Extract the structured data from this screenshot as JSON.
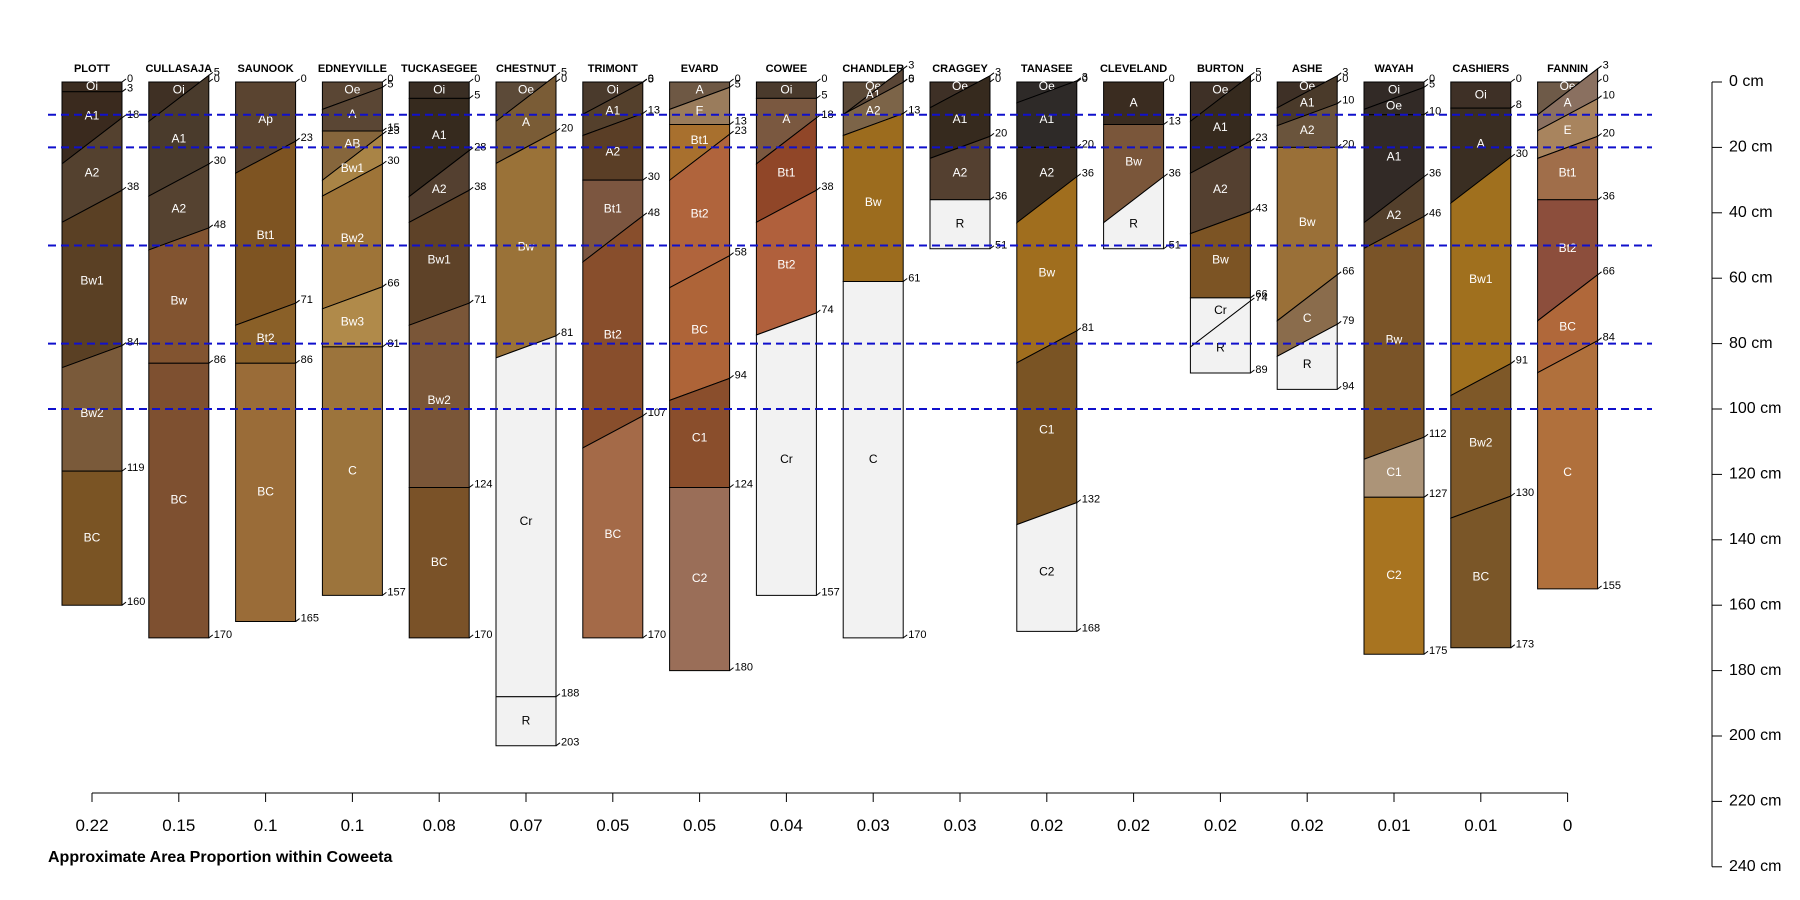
{
  "chart_data": {
    "type": "soil_profile_sketch",
    "xlabel": "Approximate Area Proportion within Coweeta",
    "depth_axis": {
      "ticks": [
        0,
        20,
        40,
        60,
        80,
        100,
        120,
        140,
        160,
        180,
        200,
        220,
        240
      ],
      "unit": "cm",
      "range": [
        0,
        240
      ]
    },
    "reference_lines": [
      10,
      20,
      50,
      80,
      100
    ],
    "reference_line_color": "#1010cc",
    "profiles": [
      {
        "name": "PLOTT",
        "proportion": "0.22",
        "horizons": [
          {
            "name": "Oi",
            "top": 0,
            "bottom": 3,
            "color": "#3b2c20"
          },
          {
            "name": "A1",
            "top": 3,
            "bottom": 18,
            "color": "#3a2a1e"
          },
          {
            "name": "A2",
            "top": 18,
            "bottom": 38,
            "color": "#54412f"
          },
          {
            "name": "Bw1",
            "top": 38,
            "bottom": 84,
            "color": "#5a4024"
          },
          {
            "name": "Bw2",
            "top": 84,
            "bottom": 119,
            "color": "#7a5a3a"
          },
          {
            "name": "BC",
            "top": 119,
            "bottom": 160,
            "color": "#7a5424"
          }
        ]
      },
      {
        "name": "CULLASAJA",
        "proportion": "0.15",
        "horizons": [
          {
            "name": "Oi",
            "top": 0,
            "bottom": 5,
            "color": "#3f3024"
          },
          {
            "name": "A1",
            "top": 5,
            "bottom": 30,
            "color": "#4a3b2c"
          },
          {
            "name": "A2",
            "top": 30,
            "bottom": 48,
            "color": "#554230"
          },
          {
            "name": "Bw",
            "top": 48,
            "bottom": 86,
            "color": "#825430"
          },
          {
            "name": "BC",
            "top": 86,
            "bottom": 170,
            "color": "#7e5030"
          }
        ]
      },
      {
        "name": "SAUNOOK",
        "proportion": "0.1",
        "horizons": [
          {
            "name": "Ap",
            "top": 0,
            "bottom": 23,
            "color": "#5a4430"
          },
          {
            "name": "Bt1",
            "top": 23,
            "bottom": 71,
            "color": "#7e5422"
          },
          {
            "name": "Bt2",
            "top": 71,
            "bottom": 86,
            "color": "#8a6028"
          },
          {
            "name": "BC",
            "top": 86,
            "bottom": 165,
            "color": "#9a6c38"
          }
        ]
      },
      {
        "name": "EDNEYVILLE",
        "proportion": "0.1",
        "horizons": [
          {
            "name": "Oe",
            "top": 0,
            "bottom": 5,
            "color": "#5a4634"
          },
          {
            "name": "A",
            "top": 5,
            "bottom": 15,
            "color": "#5a4634"
          },
          {
            "name": "AB",
            "top": 15,
            "bottom": 23,
            "color": "#86663c"
          },
          {
            "name": "Bw1",
            "top": 23,
            "bottom": 30,
            "color": "#a98446"
          },
          {
            "name": "Bw2",
            "top": 30,
            "bottom": 66,
            "color": "#9e7438"
          },
          {
            "name": "Bw3",
            "top": 66,
            "bottom": 81,
            "color": "#b08a4a"
          },
          {
            "name": "C",
            "top": 81,
            "bottom": 157,
            "color": "#9c743c"
          }
        ]
      },
      {
        "name": "TUCKASEGEE",
        "proportion": "0.08",
        "horizons": [
          {
            "name": "Oi",
            "top": 0,
            "bottom": 5,
            "color": "#3a2e24"
          },
          {
            "name": "A1",
            "top": 5,
            "bottom": 28,
            "color": "#362a1e"
          },
          {
            "name": "A2",
            "top": 28,
            "bottom": 38,
            "color": "#544030"
          },
          {
            "name": "Bw1",
            "top": 38,
            "bottom": 71,
            "color": "#5e4228"
          },
          {
            "name": "Bw2",
            "top": 71,
            "bottom": 124,
            "color": "#7a5638"
          },
          {
            "name": "BC",
            "top": 124,
            "bottom": 170,
            "color": "#7a5228"
          }
        ]
      },
      {
        "name": "CHESTNUT",
        "proportion": "0.07",
        "horizons": [
          {
            "name": "Oe",
            "top": 0,
            "bottom": 5,
            "color": "#5c4a38"
          },
          {
            "name": "A",
            "top": 5,
            "bottom": 20,
            "color": "#7a5c36"
          },
          {
            "name": "Bw",
            "top": 20,
            "bottom": 81,
            "color": "#9a7238"
          },
          {
            "name": "Cr",
            "top": 81,
            "bottom": 188,
            "color": "#f2f2f2"
          },
          {
            "name": "R",
            "top": 188,
            "bottom": 203,
            "color": "#f2f2f2"
          }
        ]
      },
      {
        "name": "TRIMONT",
        "proportion": "0.05",
        "horizons": [
          {
            "name": "Oi",
            "top": 0,
            "bottom": 5,
            "color": "#4a3a2c"
          },
          {
            "name": "A1",
            "top": 5,
            "bottom": 13,
            "color": "#54402c"
          },
          {
            "name": "A2",
            "top": 13,
            "bottom": 30,
            "color": "#5a3e26"
          },
          {
            "name": "Bt1",
            "top": 30,
            "bottom": 48,
            "color": "#7c5640"
          },
          {
            "name": "Bt2",
            "top": 48,
            "bottom": 107,
            "color": "#884e2c"
          },
          {
            "name": "BC",
            "top": 107,
            "bottom": 170,
            "color": "#a46a48"
          }
        ]
      },
      {
        "name": "EVARD",
        "proportion": "0.05",
        "horizons": [
          {
            "name": "A",
            "top": 0,
            "bottom": 5,
            "color": "#6e5844"
          },
          {
            "name": "E",
            "top": 5,
            "bottom": 13,
            "color": "#9a7c5c"
          },
          {
            "name": "Bt1",
            "top": 13,
            "bottom": 23,
            "color": "#a8702e"
          },
          {
            "name": "Bt2",
            "top": 23,
            "bottom": 58,
            "color": "#b0643c"
          },
          {
            "name": "BC",
            "top": 58,
            "bottom": 94,
            "color": "#ae6438"
          },
          {
            "name": "C1",
            "top": 94,
            "bottom": 124,
            "color": "#8a4e2c"
          },
          {
            "name": "C2",
            "top": 124,
            "bottom": 180,
            "color": "#9a6e58"
          }
        ]
      },
      {
        "name": "COWEE",
        "proportion": "0.04",
        "horizons": [
          {
            "name": "Oi",
            "top": 0,
            "bottom": 5,
            "color": "#4a3a2c"
          },
          {
            "name": "A",
            "top": 5,
            "bottom": 18,
            "color": "#7a5840"
          },
          {
            "name": "Bt1",
            "top": 18,
            "bottom": 38,
            "color": "#904628"
          },
          {
            "name": "Bt2",
            "top": 38,
            "bottom": 74,
            "color": "#b0603c"
          },
          {
            "name": "Cr",
            "top": 74,
            "bottom": 157,
            "color": "#f2f2f2"
          }
        ]
      },
      {
        "name": "CHANDLER",
        "proportion": "0.03",
        "horizons": [
          {
            "name": "Oe",
            "top": 0,
            "bottom": 3,
            "color": "#5c4a38"
          },
          {
            "name": "A1",
            "top": 3,
            "bottom": 5,
            "color": "#5a4636"
          },
          {
            "name": "A2",
            "top": 5,
            "bottom": 13,
            "color": "#7c6448"
          },
          {
            "name": "Bw",
            "top": 13,
            "bottom": 61,
            "color": "#9c6c1e"
          },
          {
            "name": "C",
            "top": 61,
            "bottom": 170,
            "color": "#f2f2f2"
          }
        ]
      },
      {
        "name": "CRAGGEY",
        "proportion": "0.03",
        "horizons": [
          {
            "name": "Oe",
            "top": 0,
            "bottom": 3,
            "color": "#3e3026"
          },
          {
            "name": "A1",
            "top": 3,
            "bottom": 20,
            "color": "#362a1e"
          },
          {
            "name": "A2",
            "top": 20,
            "bottom": 36,
            "color": "#544030"
          },
          {
            "name": "R",
            "top": 36,
            "bottom": 51,
            "color": "#f2f2f2"
          }
        ]
      },
      {
        "name": "TANASEE",
        "proportion": "0.02",
        "horizons": [
          {
            "name": "Oe",
            "top": 0,
            "bottom": 3,
            "color": "#2e2a28"
          },
          {
            "name": "A1",
            "top": 3,
            "bottom": 20,
            "color": "#2e2a28"
          },
          {
            "name": "A2",
            "top": 20,
            "bottom": 36,
            "color": "#3a2e22"
          },
          {
            "name": "Bw",
            "top": 36,
            "bottom": 81,
            "color": "#a06e1e"
          },
          {
            "name": "C1",
            "top": 81,
            "bottom": 132,
            "color": "#7a5424"
          },
          {
            "name": "C2",
            "top": 132,
            "bottom": 168,
            "color": "#f2f2f2"
          }
        ]
      },
      {
        "name": "CLEVELAND",
        "proportion": "0.02",
        "horizons": [
          {
            "name": "A",
            "top": 0,
            "bottom": 13,
            "color": "#3a2c20"
          },
          {
            "name": "Bw",
            "top": 13,
            "bottom": 36,
            "color": "#7a563a"
          },
          {
            "name": "R",
            "top": 36,
            "bottom": 51,
            "color": "#f2f2f2"
          }
        ]
      },
      {
        "name": "BURTON",
        "proportion": "0.02",
        "horizons": [
          {
            "name": "Oe",
            "top": 0,
            "bottom": 5,
            "color": "#3e3026"
          },
          {
            "name": "A1",
            "top": 5,
            "bottom": 23,
            "color": "#362a1e"
          },
          {
            "name": "A2",
            "top": 23,
            "bottom": 43,
            "color": "#544030"
          },
          {
            "name": "Bw",
            "top": 43,
            "bottom": 66,
            "color": "#7c5424"
          },
          {
            "name": "Cr",
            "top": 66,
            "bottom": 74,
            "color": "#f2f2f2"
          },
          {
            "name": "R",
            "top": 74,
            "bottom": 89,
            "color": "#f2f2f2"
          }
        ]
      },
      {
        "name": "ASHE",
        "proportion": "0.02",
        "horizons": [
          {
            "name": "Oe",
            "top": 0,
            "bottom": 3,
            "color": "#3e3026"
          },
          {
            "name": "A1",
            "top": 3,
            "bottom": 10,
            "color": "#4a3a2a"
          },
          {
            "name": "A2",
            "top": 10,
            "bottom": 20,
            "color": "#6a543c"
          },
          {
            "name": "Bw",
            "top": 20,
            "bottom": 66,
            "color": "#9a7038"
          },
          {
            "name": "C",
            "top": 66,
            "bottom": 79,
            "color": "#8a6c4c"
          },
          {
            "name": "R",
            "top": 79,
            "bottom": 94,
            "color": "#f2f2f2"
          }
        ]
      },
      {
        "name": "WAYAH",
        "proportion": "0.01",
        "horizons": [
          {
            "name": "Oi",
            "top": 0,
            "bottom": 5,
            "color": "#322a26"
          },
          {
            "name": "Oe",
            "top": 5,
            "bottom": 10,
            "color": "#322a26"
          },
          {
            "name": "A1",
            "top": 10,
            "bottom": 36,
            "color": "#322a26"
          },
          {
            "name": "A2",
            "top": 36,
            "bottom": 46,
            "color": "#54402c"
          },
          {
            "name": "Bw",
            "top": 46,
            "bottom": 112,
            "color": "#7a5428"
          },
          {
            "name": "C1",
            "top": 112,
            "bottom": 127,
            "color": "#ac9478"
          },
          {
            "name": "C2",
            "top": 127,
            "bottom": 175,
            "color": "#a87420"
          }
        ]
      },
      {
        "name": "CASHIERS",
        "proportion": "0.01",
        "horizons": [
          {
            "name": "Oi",
            "top": 0,
            "bottom": 8,
            "color": "#3e3026"
          },
          {
            "name": "A",
            "top": 8,
            "bottom": 30,
            "color": "#3a2e22"
          },
          {
            "name": "Bw1",
            "top": 30,
            "bottom": 91,
            "color": "#a0701e"
          },
          {
            "name": "Bw2",
            "top": 91,
            "bottom": 130,
            "color": "#7e5828"
          },
          {
            "name": "BC",
            "top": 130,
            "bottom": 173,
            "color": "#7a5628"
          }
        ]
      },
      {
        "name": "FANNIN",
        "proportion": "0",
        "horizons": [
          {
            "name": "Oe",
            "top": 0,
            "bottom": 3,
            "color": "#6e5a48"
          },
          {
            "name": "A",
            "top": 3,
            "bottom": 10,
            "color": "#8a7060"
          },
          {
            "name": "E",
            "top": 10,
            "bottom": 20,
            "color": "#a8845e"
          },
          {
            "name": "Bt1",
            "top": 20,
            "bottom": 36,
            "color": "#a06e4a"
          },
          {
            "name": "Bt2",
            "top": 36,
            "bottom": 66,
            "color": "#8c4e3c"
          },
          {
            "name": "BC",
            "top": 66,
            "bottom": 84,
            "color": "#b0683a"
          },
          {
            "name": "C",
            "top": 84,
            "bottom": 155,
            "color": "#b0703c"
          }
        ]
      }
    ]
  }
}
